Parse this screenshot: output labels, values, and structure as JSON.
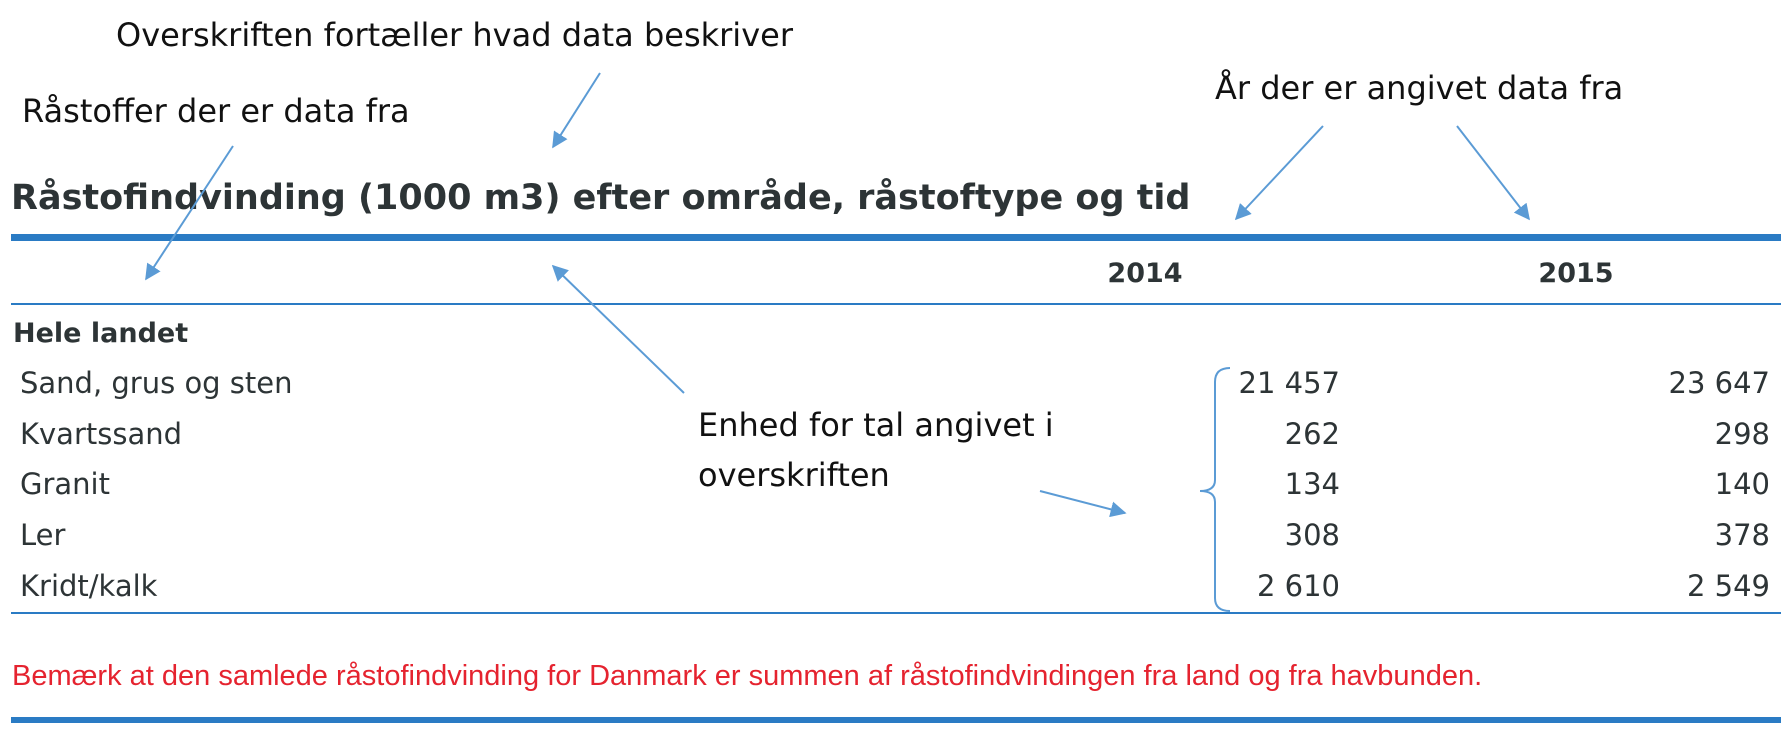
{
  "annotations": {
    "headline": "Overskriften fortæller hvad data beskriver",
    "materials": "Råstoffer der er data fra",
    "years": "År der er angivet data fra",
    "unit_line1": "Enhed for tal angivet i",
    "unit_line2": "overskriften"
  },
  "table": {
    "title": "Råstofindvinding (1000 m3) efter område, råstoftype og tid",
    "years": [
      "2014",
      "2015"
    ],
    "group": "Hele landet",
    "rows": [
      {
        "label": "Sand, grus og sten",
        "y2014": "21 457",
        "y2015": "23 647"
      },
      {
        "label": "Kvartssand",
        "y2014": "262",
        "y2015": "298"
      },
      {
        "label": "Granit",
        "y2014": "134",
        "y2015": "140"
      },
      {
        "label": "Ler",
        "y2014": "308",
        "y2015": "378"
      },
      {
        "label": "Kridt/kalk",
        "y2014": "2 610",
        "y2015": "2 549"
      }
    ]
  },
  "note": "Bemærk at den samlede råstofindvinding for Danmark er summen af råstofindvindingen fra land og fra havbunden.",
  "colors": {
    "accent_rule": "#2a7bc4",
    "arrow": "#5b9bd5",
    "note_text": "#e5232f",
    "table_text": "#2d3436"
  }
}
